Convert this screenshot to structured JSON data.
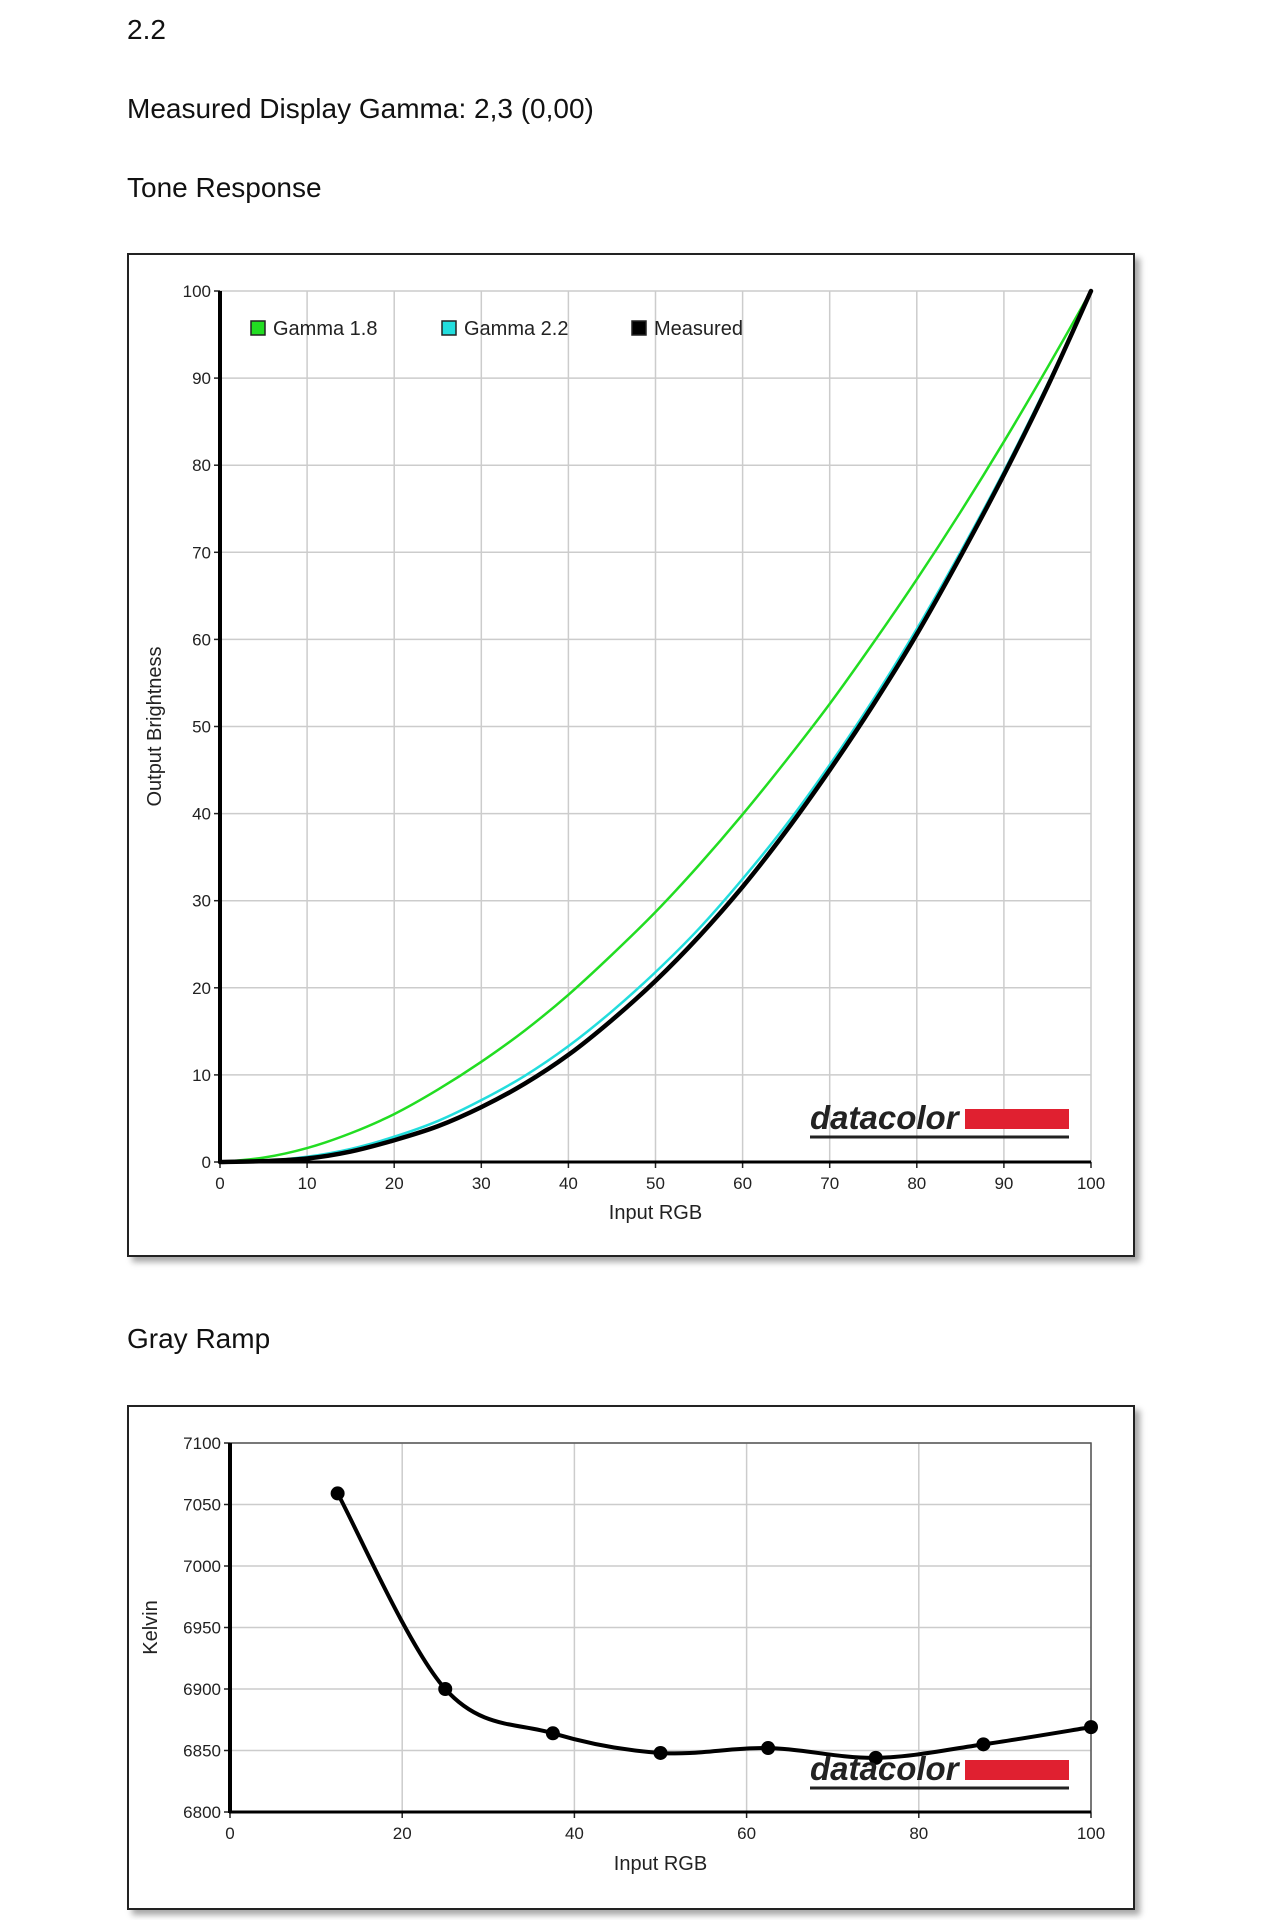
{
  "headings": {
    "gamma_target": "2.2",
    "measured_gamma": "Measured Display Gamma: 2,3 (0,00)",
    "tone_response": "Tone Response",
    "gray_ramp": "Gray Ramp"
  },
  "brand": {
    "logo_text": "datacolor",
    "bar_color": "#e02030"
  },
  "chart_data": [
    {
      "type": "line",
      "title": "Tone Response",
      "xlabel": "Input RGB",
      "ylabel": "Output Brightness",
      "xlim": [
        0,
        100
      ],
      "ylim": [
        0,
        100
      ],
      "xticks": [
        "0",
        "10",
        "20",
        "30",
        "40",
        "50",
        "60",
        "70",
        "80",
        "90",
        "100"
      ],
      "yticks": [
        "0",
        "10",
        "20",
        "30",
        "40",
        "50",
        "60",
        "70",
        "80",
        "90",
        "100"
      ],
      "grid": true,
      "legend": "top-left",
      "x": [
        0,
        5,
        10,
        15,
        20,
        25,
        30,
        35,
        40,
        45,
        50,
        55,
        60,
        65,
        70,
        75,
        80,
        85,
        90,
        95,
        100
      ],
      "series": [
        {
          "name": "Gamma 1.8",
          "color": "#22dd22",
          "values": [
            0,
            0.5,
            1.6,
            3.3,
            5.5,
            8.3,
            11.5,
            15.1,
            19.2,
            23.8,
            28.7,
            34.1,
            39.9,
            46.1,
            52.6,
            59.6,
            66.9,
            74.6,
            82.7,
            91.2,
            100
          ]
        },
        {
          "name": "Gamma 2.2",
          "color": "#22dddd",
          "values": [
            0,
            0.1,
            0.6,
            1.5,
            2.9,
            4.7,
            7.1,
            9.9,
            13.3,
            17.3,
            21.8,
            26.8,
            32.5,
            38.7,
            45.6,
            53.1,
            61.2,
            70.0,
            79.3,
            89.3,
            100
          ]
        },
        {
          "name": "Measured",
          "color": "#000000",
          "values": [
            0,
            0.1,
            0.4,
            1.2,
            2.5,
            4.1,
            6.3,
            9.0,
            12.3,
            16.3,
            20.8,
            25.9,
            31.6,
            38.0,
            45.0,
            52.5,
            60.6,
            69.5,
            78.9,
            89.0,
            100
          ]
        }
      ]
    },
    {
      "type": "line",
      "title": "Gray Ramp",
      "xlabel": "Input RGB",
      "ylabel": "Kelvin",
      "xlim": [
        0,
        100
      ],
      "ylim": [
        6800,
        7100
      ],
      "xticks": [
        "0",
        "20",
        "40",
        "60",
        "80",
        "100"
      ],
      "yticks": [
        "6800",
        "6850",
        "6900",
        "6950",
        "7000",
        "7050",
        "7100"
      ],
      "grid": true,
      "x": [
        12.5,
        25,
        37.5,
        50,
        62.5,
        75,
        87.5,
        100
      ],
      "values": [
        7059,
        6900,
        6864,
        6848,
        6852,
        6844,
        6855,
        6869
      ]
    }
  ]
}
